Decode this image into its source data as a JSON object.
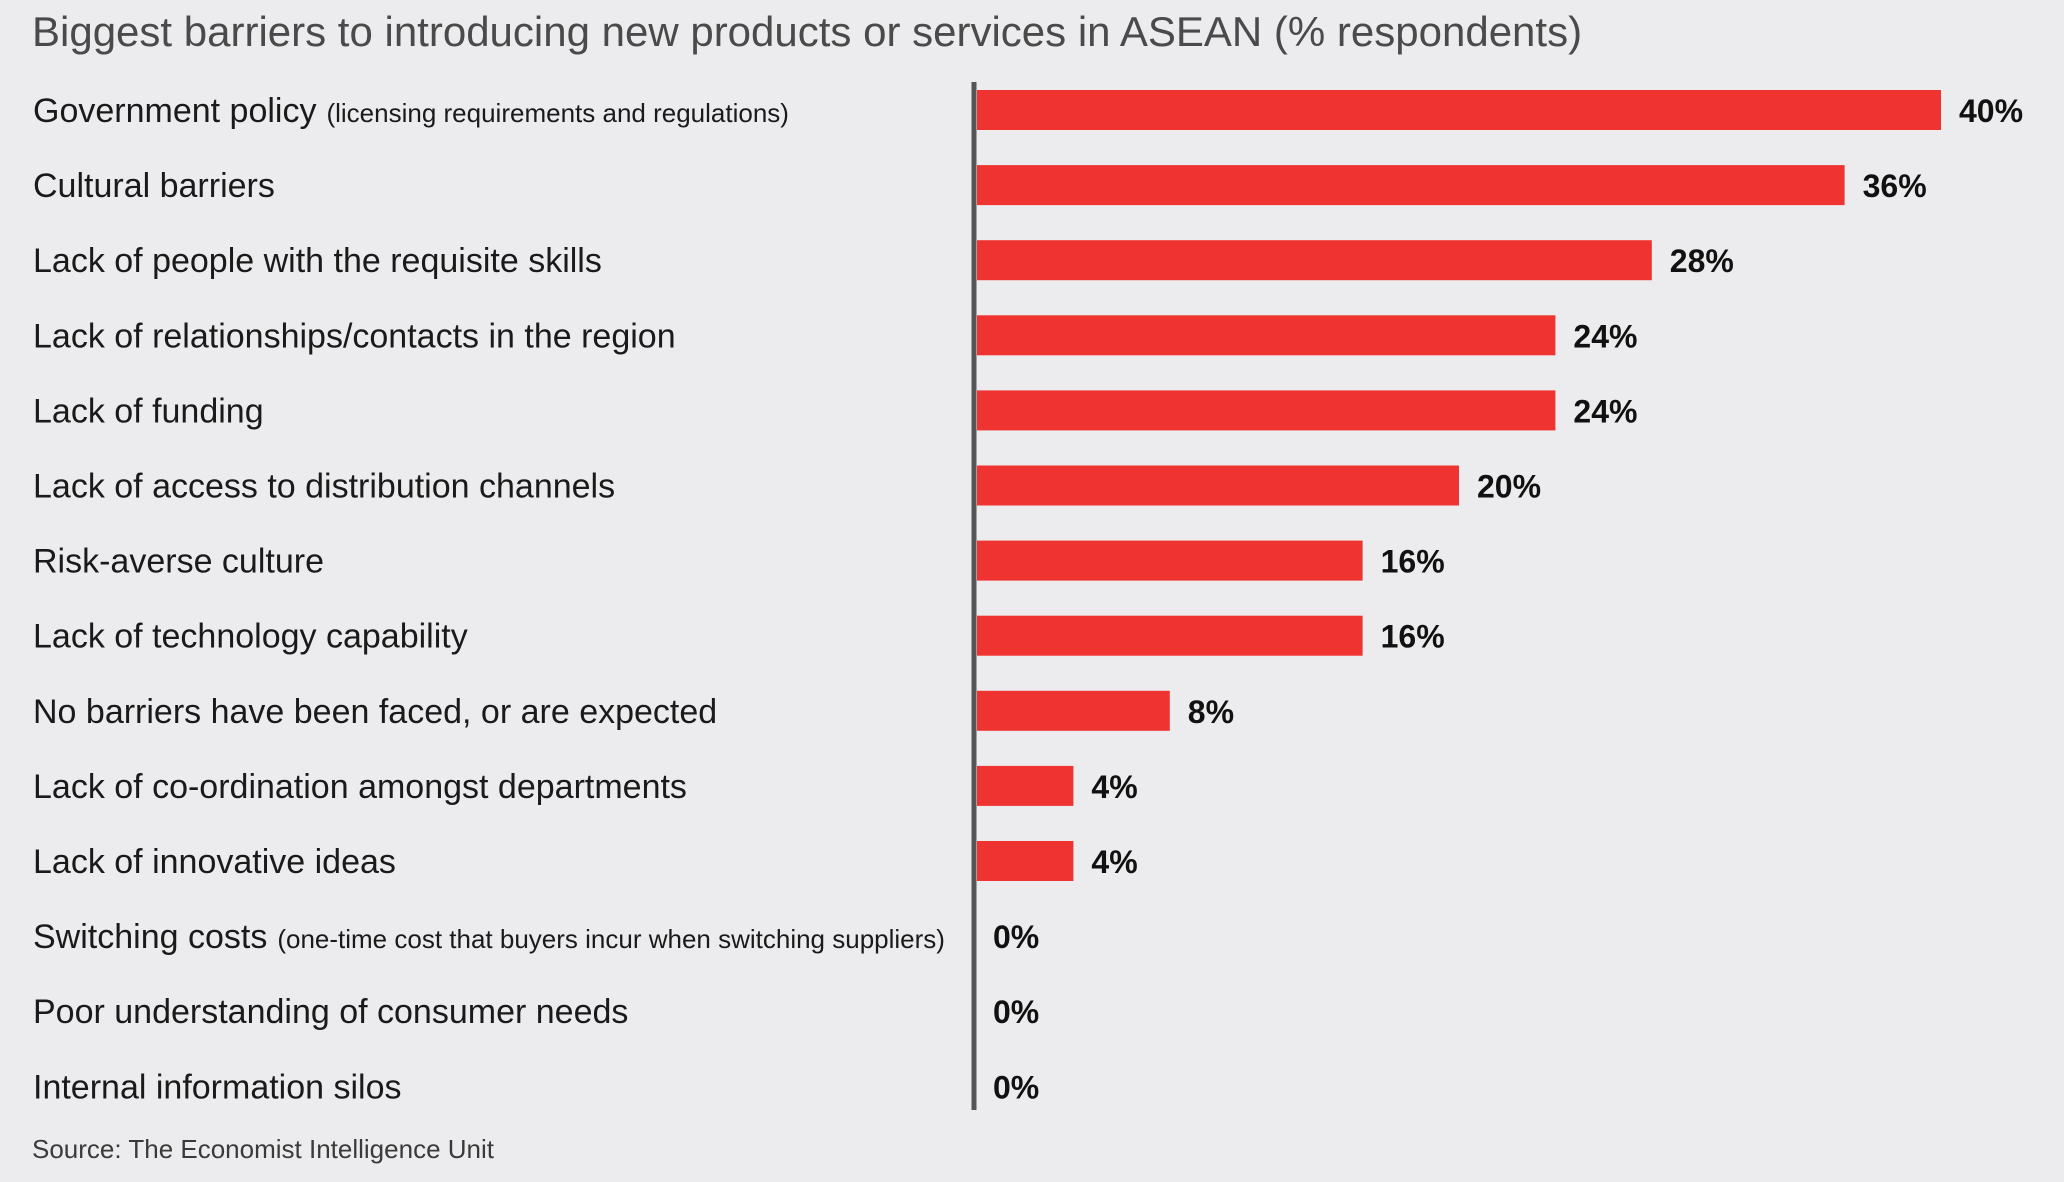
{
  "title": "Biggest barriers to introducing new products or services in ASEAN (% respondents)",
  "source": "Source: The Economist Intelligence Unit",
  "colors": {
    "bar": "#ee3330",
    "axis": "#555555",
    "background": "#ececee"
  },
  "chart_data": {
    "type": "bar",
    "orientation": "horizontal",
    "title": "Biggest barriers to introducing new products or services in ASEAN (% respondents)",
    "unit": "%",
    "xlim": [
      0,
      40
    ],
    "grid": false,
    "categories": [
      "Government policy",
      "Cultural barriers",
      "Lack of people with the requisite skills",
      "Lack of relationships/contacts in the region",
      "Lack of funding",
      "Lack of access to distribution channels",
      "Risk-averse culture",
      "Lack of technology capability",
      "No barriers have been faced, or are expected",
      "Lack of co-ordination amongst departments",
      "Lack of innovative ideas",
      "Switching costs",
      "Poor understanding of consumer needs",
      "Internal information silos"
    ],
    "category_notes": [
      "(licensing requirements and regulations)",
      "",
      "",
      "",
      "",
      "",
      "",
      "",
      "",
      "",
      "",
      "(one-time cost that buyers incur when switching suppliers)",
      "",
      ""
    ],
    "values": [
      40,
      36,
      28,
      24,
      24,
      20,
      16,
      16,
      8,
      4,
      4,
      0,
      0,
      0
    ],
    "value_labels": [
      "40%",
      "36%",
      "28%",
      "24%",
      "24%",
      "20%",
      "16%",
      "16%",
      "8%",
      "4%",
      "4%",
      "0%",
      "0%",
      "0%"
    ]
  }
}
